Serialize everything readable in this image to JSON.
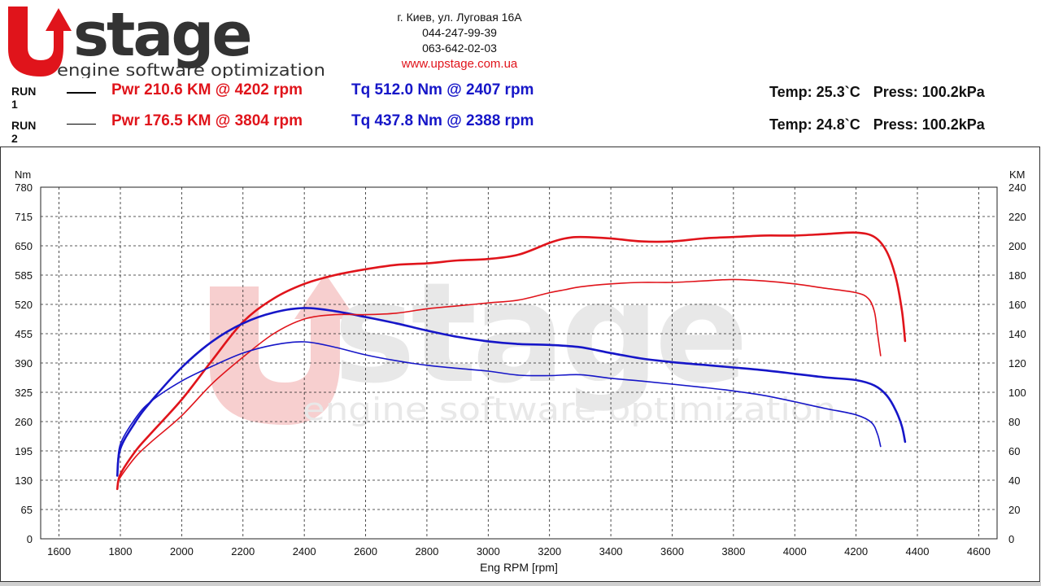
{
  "header": {
    "logo": {
      "big": "stage",
      "tag": "engine software optimization"
    },
    "contact": {
      "address": "г. Киев, ул. Луговая 16А",
      "phone1": "044-247-99-39",
      "phone2": "063-642-02-03",
      "website": "www.upstage.com.ua"
    },
    "runs": [
      {
        "label": "RUN 1",
        "pwr": "Pwr  210.6 KM @ 4202 rpm",
        "tq": "Tq 512.0 Nm @ 2407 rpm",
        "temp": "Temp: 25.3`C",
        "press": "Press: 100.2kPa"
      },
      {
        "label": "RUN 2",
        "pwr": "Pwr  176.5 KM @ 3804 rpm",
        "tq": "Tq 437.8 Nm @ 2388 rpm",
        "temp": "Temp: 24.8`C",
        "press": "Press: 100.2kPa"
      }
    ]
  },
  "chart_data": {
    "type": "line",
    "title": "",
    "xlabel": "Eng RPM [rpm]",
    "ylabel_left": "Nm",
    "ylabel_right": "KM",
    "xlim": [
      1540,
      4660
    ],
    "xticks": [
      1600,
      1800,
      2000,
      2200,
      2400,
      2600,
      2800,
      3000,
      3200,
      3400,
      3600,
      3800,
      4000,
      4200,
      4400,
      4600
    ],
    "ylim_left": [
      0,
      780
    ],
    "yticks_left": [
      0,
      65,
      130,
      195,
      260,
      325,
      390,
      455,
      520,
      585,
      650,
      715,
      780
    ],
    "ylim_right": [
      0,
      240
    ],
    "yticks_right": [
      0,
      20,
      40,
      60,
      80,
      100,
      120,
      140,
      160,
      180,
      200,
      220,
      240
    ],
    "grid": true,
    "colors": {
      "power": "#e0141b",
      "torque": "#1616c8",
      "grid": "#222222",
      "watermark": "#e8e8e8",
      "watermark_u": "#f7cfcf"
    },
    "series": [
      {
        "run": 1,
        "quantity": "power",
        "axis": "right",
        "x": [
          1790,
          1800,
          1850,
          1900,
          2000,
          2100,
          2200,
          2300,
          2400,
          2500,
          2600,
          2700,
          2800,
          2900,
          3000,
          3100,
          3200,
          3250,
          3300,
          3400,
          3500,
          3600,
          3700,
          3800,
          3900,
          4000,
          4100,
          4200,
          4260,
          4300,
          4330,
          4350,
          4360
        ],
        "y": [
          34,
          44,
          60,
          72,
          95,
          122,
          148,
          164,
          174,
          180,
          184,
          187,
          188,
          190,
          191,
          194,
          202,
          205,
          206,
          205,
          203,
          203,
          205,
          206,
          207,
          207,
          208,
          209,
          206,
          196,
          178,
          155,
          135
        ]
      },
      {
        "run": 1,
        "quantity": "torque",
        "axis": "left",
        "x": [
          1790,
          1800,
          1850,
          1900,
          2000,
          2100,
          2200,
          2300,
          2400,
          2500,
          2600,
          2700,
          2800,
          2900,
          3000,
          3100,
          3200,
          3300,
          3400,
          3500,
          3600,
          3700,
          3800,
          3900,
          4000,
          4100,
          4200,
          4260,
          4300,
          4330,
          4350,
          4360
        ],
        "y": [
          140,
          200,
          260,
          305,
          380,
          438,
          478,
          502,
          512,
          505,
          492,
          478,
          462,
          448,
          438,
          432,
          430,
          425,
          412,
          400,
          392,
          386,
          380,
          374,
          366,
          358,
          352,
          340,
          318,
          284,
          248,
          215
        ]
      },
      {
        "run": 2,
        "quantity": "power",
        "axis": "right",
        "x": [
          1790,
          1800,
          1850,
          1900,
          2000,
          2100,
          2200,
          2300,
          2400,
          2500,
          2600,
          2700,
          2800,
          2900,
          3000,
          3100,
          3200,
          3250,
          3300,
          3400,
          3500,
          3600,
          3700,
          3800,
          3900,
          4000,
          4100,
          4200,
          4240,
          4260,
          4270,
          4280
        ],
        "y": [
          36,
          42,
          56,
          66,
          84,
          106,
          124,
          140,
          150,
          153,
          153,
          154,
          157,
          159,
          161,
          163,
          168,
          170,
          172,
          174,
          175,
          175,
          176,
          177,
          176,
          174,
          171,
          168,
          164,
          155,
          140,
          125
        ]
      },
      {
        "run": 2,
        "quantity": "torque",
        "axis": "left",
        "x": [
          1790,
          1800,
          1850,
          1900,
          2000,
          2100,
          2200,
          2300,
          2400,
          2500,
          2600,
          2700,
          2800,
          2900,
          3000,
          3100,
          3200,
          3300,
          3400,
          3500,
          3600,
          3700,
          3800,
          3900,
          4000,
          4100,
          4200,
          4250,
          4270,
          4280
        ],
        "y": [
          150,
          210,
          268,
          305,
          350,
          383,
          412,
          430,
          437,
          425,
          408,
          395,
          385,
          378,
          372,
          363,
          362,
          364,
          356,
          350,
          343,
          336,
          328,
          318,
          304,
          289,
          275,
          258,
          232,
          205
        ]
      }
    ]
  }
}
